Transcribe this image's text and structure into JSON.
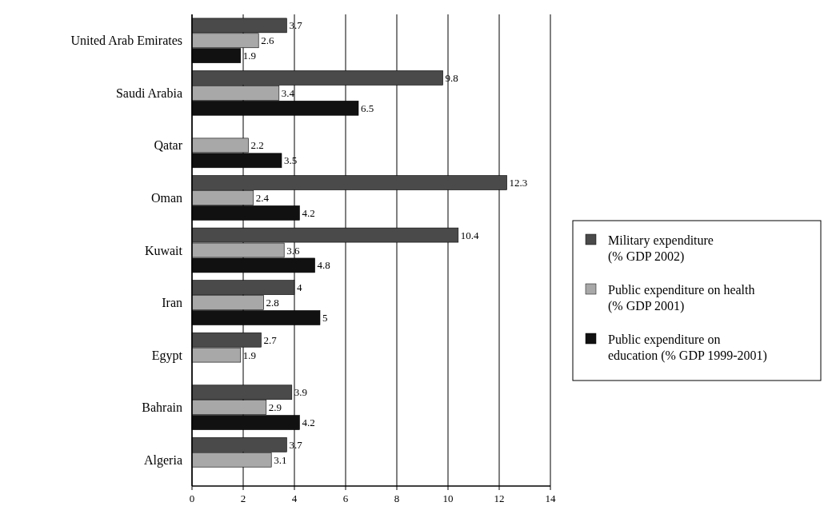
{
  "chart_data": {
    "type": "bar",
    "orientation": "horizontal",
    "categories": [
      "United Arab Emirates",
      "Saudi Arabia",
      "Qatar",
      "Oman",
      "Kuwait",
      "Iran",
      "Egypt",
      "Bahrain",
      "Algeria"
    ],
    "series": [
      {
        "name": "Military expenditure (% GDP 2002)",
        "color": "#4a4a4a",
        "values": [
          3.7,
          9.8,
          null,
          12.3,
          10.4,
          4,
          2.7,
          3.9,
          3.7
        ]
      },
      {
        "name": "Public expenditure on health (% GDP 2001)",
        "color": "#a8a8a8",
        "values": [
          2.6,
          3.4,
          2.2,
          2.4,
          3.6,
          2.8,
          1.9,
          2.9,
          3.1
        ]
      },
      {
        "name": "Public expenditure on education (% GDP 1999-2001)",
        "color": "#111111",
        "values": [
          1.9,
          6.5,
          3.5,
          4.2,
          4.8,
          5,
          null,
          4.2,
          null
        ]
      }
    ],
    "xlim": [
      0,
      14
    ],
    "xticks": [
      0,
      2,
      4,
      6,
      8,
      10,
      12,
      14
    ],
    "grid": "x",
    "legend": "right",
    "data_labels": true
  }
}
